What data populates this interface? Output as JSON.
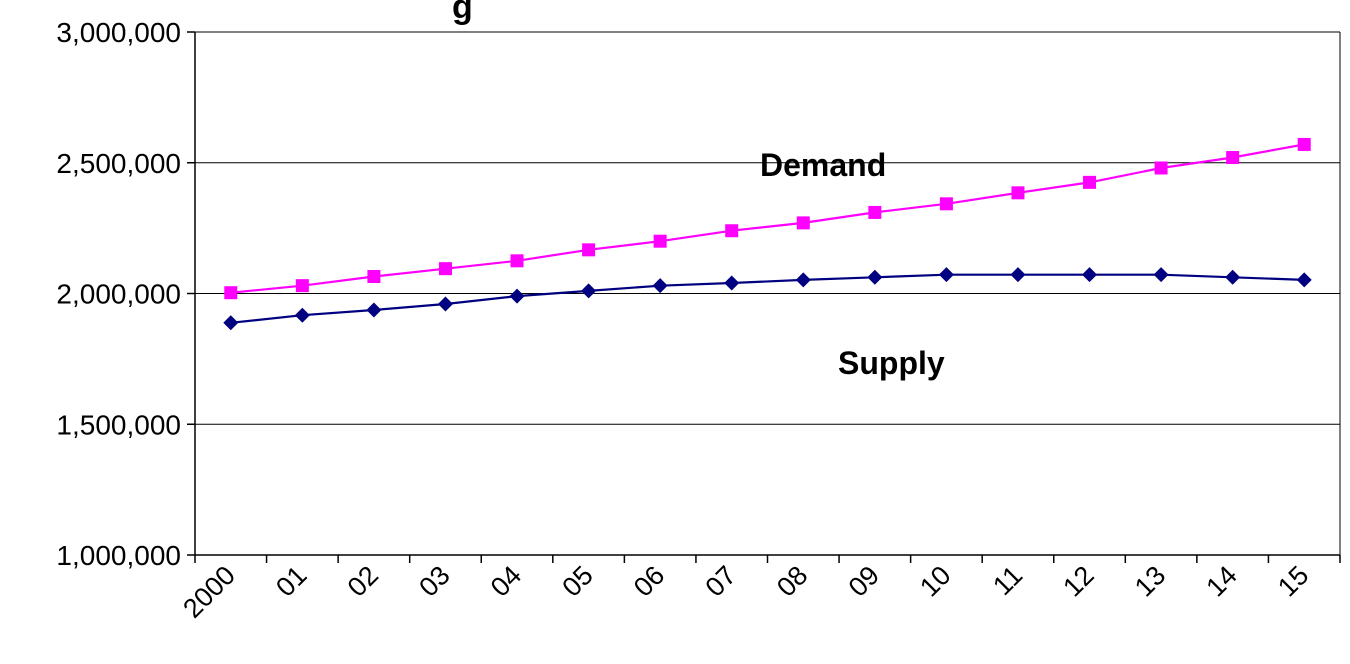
{
  "chart_data": {
    "type": "line",
    "title_fragment": "g",
    "x": [
      "2000",
      "01",
      "02",
      "03",
      "04",
      "05",
      "06",
      "07",
      "08",
      "09",
      "10",
      "11",
      "12",
      "13",
      "14",
      "15"
    ],
    "ylim": [
      1000000,
      3000000
    ],
    "yticks": [
      1000000,
      1500000,
      2000000,
      2500000,
      3000000
    ],
    "ytick_labels": [
      "1,000,000",
      "1,500,000",
      "2,000,000",
      "2,500,000",
      "3,000,000"
    ],
    "grid": "horizontal",
    "legend": "none",
    "series": [
      {
        "name": "Demand",
        "color": "#ff00ff",
        "marker": "square",
        "values": [
          2003000,
          2030000,
          2065000,
          2095000,
          2125000,
          2167000,
          2200000,
          2240000,
          2270000,
          2310000,
          2343000,
          2385000,
          2425000,
          2480000,
          2520000,
          2570000
        ]
      },
      {
        "name": "Supply",
        "color": "#000080",
        "marker": "diamond",
        "values": [
          1888000,
          1917000,
          1937000,
          1960000,
          1990000,
          2010000,
          2030000,
          2040000,
          2052000,
          2062000,
          2072000,
          2072000,
          2072000,
          2072000,
          2062000,
          2052000
        ]
      }
    ]
  }
}
